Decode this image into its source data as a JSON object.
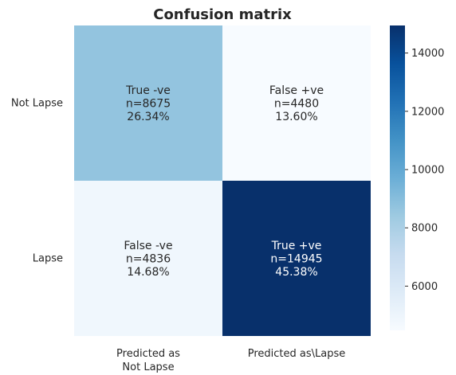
{
  "chart_data": {
    "type": "heatmap",
    "title": "Confusion matrix",
    "x_categories": [
      "Predicted as\nNot Lapse",
      "Predicted as\\Lapse"
    ],
    "y_categories": [
      "Not Lapse",
      "Lapse"
    ],
    "cells": [
      [
        {
          "value": 8675,
          "lines": [
            "True -ve",
            "n=8675",
            "26.34%"
          ]
        },
        {
          "value": 4480,
          "lines": [
            "False +ve",
            "n=4480",
            "13.60%"
          ]
        }
      ],
      [
        {
          "value": 4836,
          "lines": [
            "False -ve",
            "n=4836",
            "14.68%"
          ]
        },
        {
          "value": 14945,
          "lines": [
            "True +ve",
            "n=14945",
            "45.38%"
          ]
        }
      ]
    ],
    "colormap": "Blues",
    "colorbar": {
      "vmin": 4480,
      "vmax": 14945,
      "ticks": [
        6000,
        8000,
        10000,
        12000,
        14000
      ]
    },
    "grid": false
  }
}
